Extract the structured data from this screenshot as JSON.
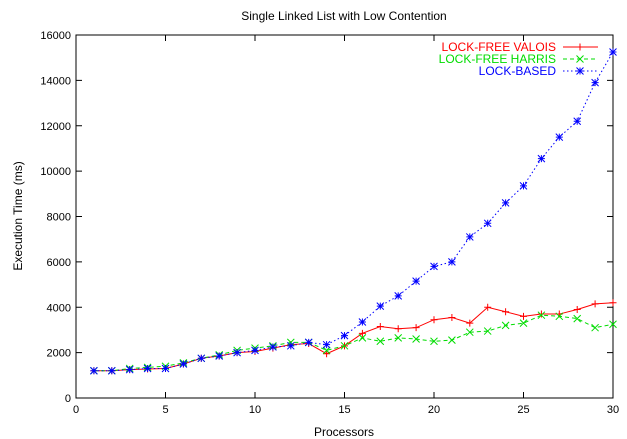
{
  "chart_data": {
    "type": "line",
    "title": "Single Linked List with Low Contention",
    "xlabel": "Processors",
    "ylabel": "Execution Time (ms)",
    "xlim": [
      0,
      30
    ],
    "ylim": [
      0,
      16000
    ],
    "xticks": [
      0,
      5,
      10,
      15,
      20,
      25,
      30
    ],
    "yticks": [
      0,
      2000,
      4000,
      6000,
      8000,
      10000,
      12000,
      14000,
      16000
    ],
    "grid": false,
    "legend_position": "top-right",
    "x": [
      1,
      2,
      3,
      4,
      5,
      6,
      7,
      8,
      9,
      10,
      11,
      12,
      13,
      14,
      15,
      16,
      17,
      18,
      19,
      20,
      21,
      22,
      23,
      24,
      25,
      26,
      27,
      28,
      29,
      30
    ],
    "series": [
      {
        "name": "LOCK-FREE VALOIS",
        "color": "#ff0000",
        "marker": "plus",
        "dash": "solid",
        "values": [
          1200,
          1200,
          1250,
          1280,
          1300,
          1500,
          1750,
          1850,
          2000,
          2050,
          2200,
          2350,
          2400,
          1950,
          2300,
          2850,
          3150,
          3050,
          3100,
          3450,
          3550,
          3300,
          4000,
          3800,
          3600,
          3700,
          3700,
          3900,
          4150,
          4200
        ]
      },
      {
        "name": "LOCK-FREE HARRIS",
        "color": "#00dd00",
        "marker": "cross",
        "dash": "dashed",
        "values": [
          1200,
          1200,
          1300,
          1350,
          1400,
          1550,
          1750,
          1900,
          2100,
          2200,
          2300,
          2450,
          2450,
          2100,
          2300,
          2650,
          2500,
          2650,
          2600,
          2500,
          2550,
          2900,
          2950,
          3200,
          3300,
          3650,
          3600,
          3500,
          3100,
          3250
        ]
      },
      {
        "name": "LOCK-BASED",
        "color": "#0000ff",
        "marker": "star",
        "dash": "dotted",
        "values": [
          1200,
          1200,
          1250,
          1300,
          1300,
          1500,
          1750,
          1850,
          2000,
          2100,
          2250,
          2300,
          2450,
          2350,
          2750,
          3350,
          4050,
          4500,
          5150,
          5800,
          6000,
          7100,
          7700,
          8600,
          9350,
          10550,
          11500,
          12200,
          13900,
          15250
        ]
      }
    ]
  }
}
